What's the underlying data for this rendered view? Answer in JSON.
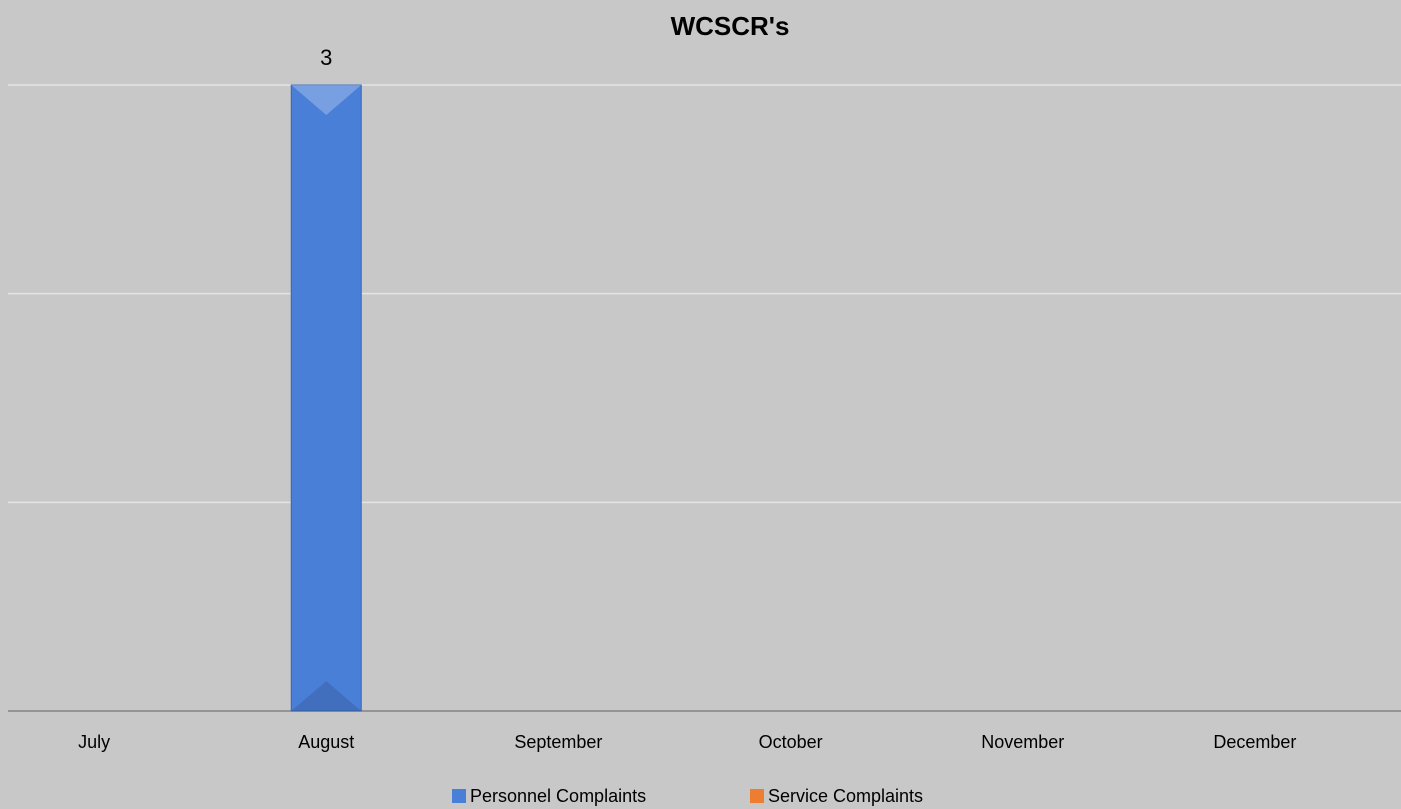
{
  "chart_data": {
    "type": "bar",
    "title": "WCSCR's",
    "categories": [
      "July",
      "August",
      "September",
      "October",
      "November",
      "December"
    ],
    "series": [
      {
        "name": "Personnel Complaints",
        "color": "#4a7fd8",
        "values": [
          null,
          3,
          null,
          null,
          null,
          null
        ]
      },
      {
        "name": "Service Complaints",
        "color": "#ed7d31",
        "values": [
          null,
          null,
          null,
          null,
          null,
          null
        ]
      }
    ],
    "ylim": [
      0,
      3
    ],
    "yticks": [
      0,
      1,
      2,
      3
    ],
    "grid": true,
    "legend": "bottom"
  }
}
